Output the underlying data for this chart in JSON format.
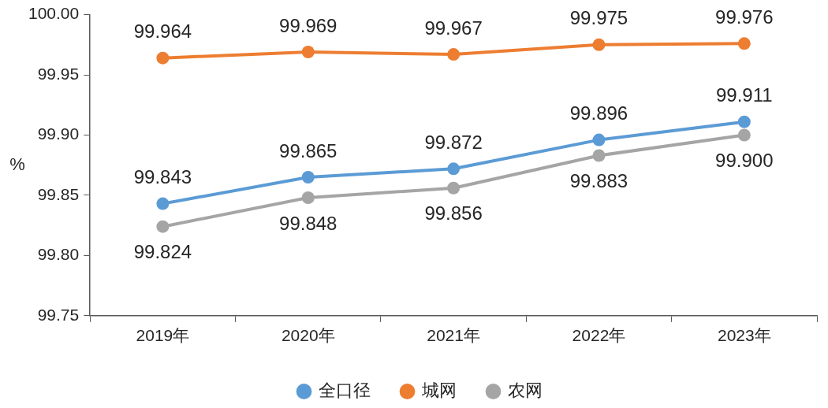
{
  "chart_data": {
    "type": "line",
    "ylabel": "%",
    "categories": [
      "2019年",
      "2020年",
      "2021年",
      "2022年",
      "2023年"
    ],
    "series": [
      {
        "name": "全口径",
        "color": "#5b9bd5",
        "values": [
          99.843,
          99.865,
          99.872,
          99.896,
          99.911
        ],
        "value_labels": [
          "99.843",
          "99.865",
          "99.872",
          "99.896",
          "99.911"
        ]
      },
      {
        "name": "城网",
        "color": "#ed7d31",
        "values": [
          99.964,
          99.969,
          99.967,
          99.975,
          99.976
        ],
        "value_labels": [
          "99.964",
          "99.969",
          "99.967",
          "99.975",
          "99.976"
        ]
      },
      {
        "name": "农网",
        "color": "#a5a5a5",
        "values": [
          99.824,
          99.848,
          99.856,
          99.883,
          99.9
        ],
        "value_labels": [
          "99.824",
          "99.848",
          "99.856",
          "99.883",
          "99.900"
        ]
      }
    ],
    "ylim": [
      99.75,
      100.0
    ],
    "yticks": [
      99.75,
      {
        "value": 99.8,
        "label": "99.80"
      },
      99.85,
      {
        "value": 99.9,
        "label": "99.90"
      },
      99.95,
      {
        "value": 100.0,
        "label": "100.00"
      }
    ],
    "legend": "bottom",
    "grid": false,
    "marker": "circle",
    "line_style": "solid"
  }
}
